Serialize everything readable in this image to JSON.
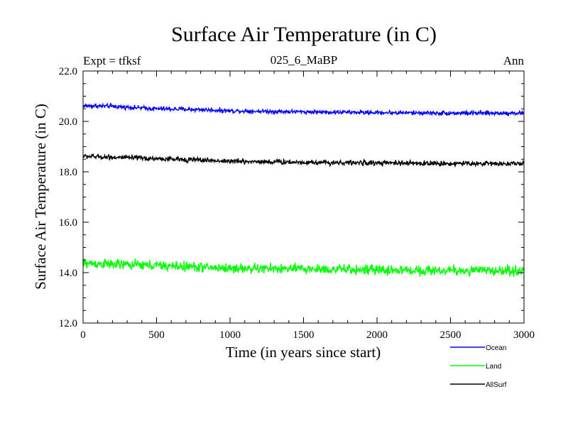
{
  "chart_data": {
    "type": "line",
    "title": "Surface Air Temperature (in C)",
    "subtitle": "025_6_MaBP",
    "left_label": "Expt = tfksf",
    "right_label": "Ann",
    "xlabel": "Time (in years since start)",
    "ylabel": "Surface Air Temperature (in C)",
    "xlim": [
      0,
      3000
    ],
    "ylim": [
      12.0,
      22.0
    ],
    "x_ticks": [
      0,
      500,
      1000,
      1500,
      2000,
      2500,
      3000
    ],
    "x_tick_labels": [
      "0",
      "500",
      "1000",
      "1500",
      "2000",
      "2500",
      "3000"
    ],
    "y_ticks": [
      12.0,
      14.0,
      16.0,
      18.0,
      20.0,
      22.0
    ],
    "y_tick_labels": [
      "12.0",
      "14.0",
      "16.0",
      "18.0",
      "20.0",
      "22.0"
    ],
    "grid": false,
    "legend_position": "bottom-right",
    "series": [
      {
        "name": "Ocean",
        "color": "#0000ff",
        "noise": 0.06,
        "x": [
          0,
          200,
          500,
          800,
          1000,
          1500,
          2000,
          2500,
          3000
        ],
        "values": [
          20.62,
          20.6,
          20.5,
          20.47,
          20.42,
          20.38,
          20.35,
          20.33,
          20.33
        ]
      },
      {
        "name": "Land",
        "color": "#00ff00",
        "noise": 0.14,
        "x": [
          0,
          200,
          500,
          800,
          1000,
          1500,
          2000,
          2500,
          3000
        ],
        "values": [
          14.38,
          14.33,
          14.28,
          14.22,
          14.17,
          14.15,
          14.1,
          14.08,
          14.08
        ]
      },
      {
        "name": "AllSurf",
        "color": "#000000",
        "noise": 0.07,
        "x": [
          0,
          200,
          500,
          800,
          1000,
          1500,
          2000,
          2500,
          3000
        ],
        "values": [
          18.62,
          18.58,
          18.52,
          18.47,
          18.42,
          18.38,
          18.35,
          18.33,
          18.33
        ]
      }
    ]
  }
}
